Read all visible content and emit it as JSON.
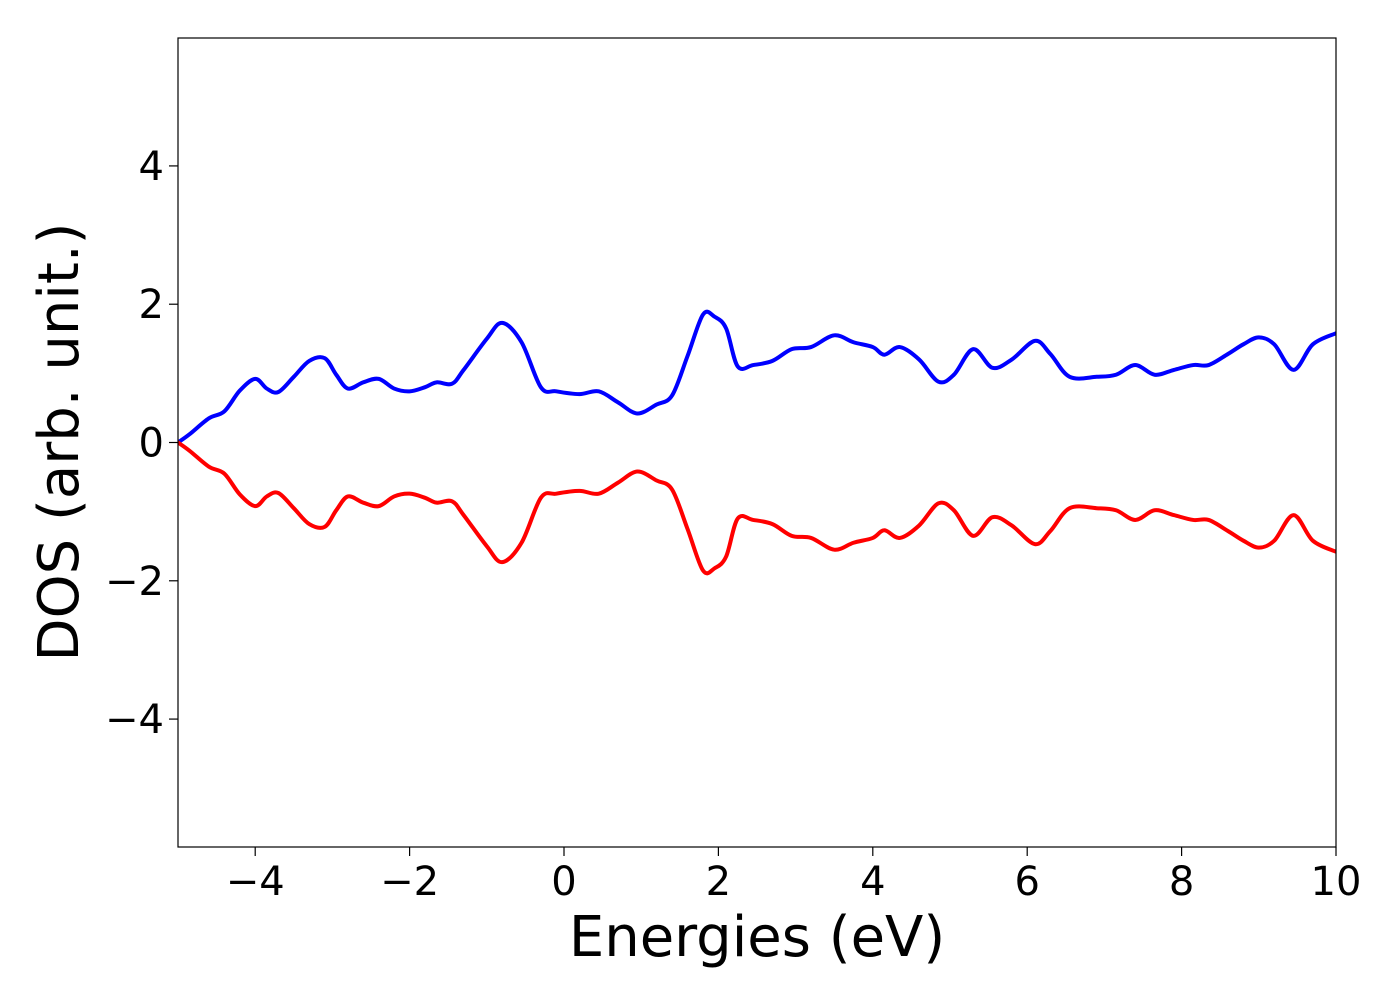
{
  "chart_data": {
    "type": "line",
    "title": "",
    "xlabel": "Energies (eV)",
    "ylabel": "DOS (arb. unit.)",
    "xlim": [
      -5,
      10
    ],
    "ylim": [
      -5.85,
      5.85
    ],
    "xticks": [
      -4,
      -2,
      0,
      2,
      4,
      6,
      8,
      10
    ],
    "xtick_labels": [
      "−4",
      "−2",
      "0",
      "2",
      "4",
      "6",
      "8",
      "10"
    ],
    "yticks": [
      -4,
      -2,
      0,
      2,
      4
    ],
    "ytick_labels": [
      "−4",
      "−2",
      "0",
      "2",
      "4"
    ],
    "grid": false,
    "legend": "none",
    "series": [
      {
        "color": "#0000ff",
        "x": [
          -5.0,
          -4.85,
          -4.6,
          -4.4,
          -4.2,
          -4.0,
          -3.85,
          -3.7,
          -3.5,
          -3.3,
          -3.1,
          -2.95,
          -2.8,
          -2.6,
          -2.4,
          -2.2,
          -2.0,
          -1.8,
          -1.65,
          -1.45,
          -1.3,
          -1.0,
          -0.8,
          -0.55,
          -0.3,
          -0.1,
          0.2,
          0.45,
          0.7,
          0.95,
          1.2,
          1.4,
          1.6,
          1.8,
          1.95,
          2.1,
          2.25,
          2.45,
          2.7,
          2.95,
          3.2,
          3.5,
          3.75,
          4.0,
          4.15,
          4.35,
          4.6,
          4.85,
          5.05,
          5.3,
          5.55,
          5.8,
          6.1,
          6.3,
          6.55,
          6.9,
          7.15,
          7.4,
          7.65,
          7.9,
          8.15,
          8.35,
          8.6,
          8.8,
          9.0,
          9.2,
          9.45,
          9.7,
          10.0
        ],
        "values": [
          0.0,
          0.12,
          0.35,
          0.45,
          0.75,
          0.92,
          0.78,
          0.73,
          0.95,
          1.18,
          1.22,
          0.98,
          0.78,
          0.87,
          0.92,
          0.78,
          0.74,
          0.8,
          0.87,
          0.85,
          1.05,
          1.5,
          1.73,
          1.45,
          0.8,
          0.74,
          0.7,
          0.74,
          0.58,
          0.42,
          0.55,
          0.68,
          1.25,
          1.85,
          1.82,
          1.65,
          1.1,
          1.12,
          1.18,
          1.35,
          1.38,
          1.55,
          1.45,
          1.38,
          1.27,
          1.38,
          1.2,
          0.88,
          0.98,
          1.35,
          1.08,
          1.2,
          1.47,
          1.28,
          0.95,
          0.95,
          0.98,
          1.12,
          0.98,
          1.05,
          1.12,
          1.12,
          1.28,
          1.42,
          1.52,
          1.42,
          1.05,
          1.42,
          1.58
        ]
      },
      {
        "color": "#ff0000",
        "x": [
          -5.0,
          -4.85,
          -4.6,
          -4.4,
          -4.2,
          -4.0,
          -3.85,
          -3.7,
          -3.5,
          -3.3,
          -3.1,
          -2.95,
          -2.8,
          -2.6,
          -2.4,
          -2.2,
          -2.0,
          -1.8,
          -1.65,
          -1.45,
          -1.3,
          -1.0,
          -0.8,
          -0.55,
          -0.3,
          -0.1,
          0.2,
          0.45,
          0.7,
          0.95,
          1.2,
          1.4,
          1.6,
          1.8,
          1.95,
          2.1,
          2.25,
          2.45,
          2.7,
          2.95,
          3.2,
          3.5,
          3.75,
          4.0,
          4.15,
          4.35,
          4.6,
          4.85,
          5.05,
          5.3,
          5.55,
          5.8,
          6.1,
          6.3,
          6.55,
          6.9,
          7.15,
          7.4,
          7.65,
          7.9,
          8.15,
          8.35,
          8.6,
          8.8,
          9.0,
          9.2,
          9.45,
          9.7,
          10.0
        ],
        "values": [
          0.0,
          -0.12,
          -0.35,
          -0.45,
          -0.75,
          -0.92,
          -0.78,
          -0.73,
          -0.95,
          -1.18,
          -1.22,
          -0.98,
          -0.78,
          -0.87,
          -0.92,
          -0.78,
          -0.74,
          -0.8,
          -0.87,
          -0.85,
          -1.05,
          -1.5,
          -1.73,
          -1.45,
          -0.8,
          -0.74,
          -0.7,
          -0.74,
          -0.58,
          -0.42,
          -0.55,
          -0.68,
          -1.25,
          -1.85,
          -1.82,
          -1.65,
          -1.1,
          -1.12,
          -1.18,
          -1.35,
          -1.38,
          -1.55,
          -1.45,
          -1.38,
          -1.27,
          -1.38,
          -1.2,
          -0.88,
          -0.98,
          -1.35,
          -1.08,
          -1.2,
          -1.47,
          -1.28,
          -0.95,
          -0.95,
          -0.98,
          -1.12,
          -0.98,
          -1.05,
          -1.12,
          -1.12,
          -1.28,
          -1.42,
          -1.52,
          -1.42,
          -1.05,
          -1.42,
          -1.58
        ]
      }
    ]
  }
}
